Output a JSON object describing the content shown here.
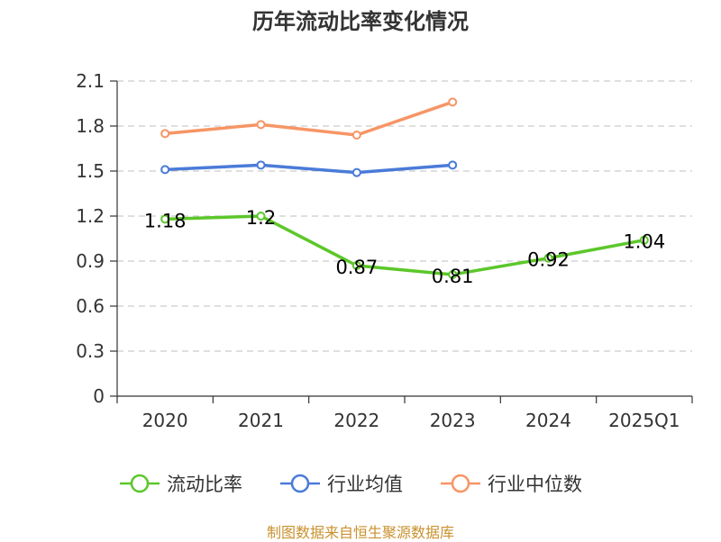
{
  "title": "历年流动比率变化情况",
  "footer": "制图数据来自恒生聚源数据库",
  "colors": {
    "current_ratio": "#5cc72a",
    "industry_mean": "#4a7bd8",
    "industry_median": "#f79565",
    "footer": "#c9912e",
    "axis": "#333333",
    "grid": "#cccccc"
  },
  "legend": [
    {
      "label": "流动比率",
      "color": "#5cc72a"
    },
    {
      "label": "行业均值",
      "color": "#4a7bd8"
    },
    {
      "label": "行业中位数",
      "color": "#f79565"
    }
  ],
  "chart_data": {
    "type": "line",
    "title": "历年流动比率变化情况",
    "categories": [
      "2020",
      "2021",
      "2022",
      "2023",
      "2024",
      "2025Q1"
    ],
    "ylim": [
      0,
      2.1
    ],
    "yticks": [
      "0",
      "0.3",
      "0.6",
      "0.9",
      "1.2",
      "1.5",
      "1.8",
      "2.1"
    ],
    "grid": true,
    "legend_position": "bottom",
    "series": [
      {
        "name": "流动比率",
        "color": "#5cc72a",
        "values": [
          1.18,
          1.2,
          0.87,
          0.81,
          0.92,
          1.04
        ],
        "labels": [
          "1.18",
          "1.2",
          "0.87",
          "0.81",
          "0.92",
          "1.04"
        ]
      },
      {
        "name": "行业均值",
        "color": "#4a7bd8",
        "values": [
          1.51,
          1.54,
          1.49,
          1.54,
          null,
          null
        ]
      },
      {
        "name": "行业中位数",
        "color": "#f79565",
        "values": [
          1.75,
          1.81,
          1.74,
          1.96,
          null,
          null
        ]
      }
    ]
  }
}
